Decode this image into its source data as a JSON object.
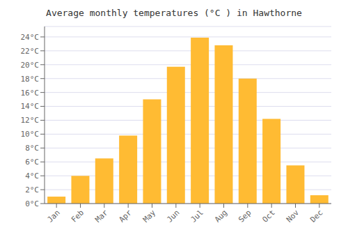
{
  "chart_data": {
    "type": "bar",
    "title": "Average monthly temperatures (°C ) in Hawthorne",
    "categories": [
      "Jan",
      "Feb",
      "Mar",
      "Apr",
      "May",
      "Jun",
      "Jul",
      "Aug",
      "Sep",
      "Oct",
      "Nov",
      "Dec"
    ],
    "values": [
      1,
      4,
      6.5,
      9.8,
      15,
      19.7,
      23.9,
      22.8,
      18,
      12.2,
      5.5,
      1.2
    ],
    "color": "#FFBB33",
    "ylim": [
      0,
      25.5
    ],
    "yticks": [
      {
        "value": 0,
        "label": "0°C"
      },
      {
        "value": 2,
        "label": "2°C"
      },
      {
        "value": 4,
        "label": "4°C"
      },
      {
        "value": 6,
        "label": "6°C"
      },
      {
        "value": 8,
        "label": "8°C"
      },
      {
        "value": 10,
        "label": "10°C"
      },
      {
        "value": 12,
        "label": "12°C"
      },
      {
        "value": 14,
        "label": "14°C"
      },
      {
        "value": 16,
        "label": "16°C"
      },
      {
        "value": 18,
        "label": "18°C"
      },
      {
        "value": 20,
        "label": "20°C"
      },
      {
        "value": 22,
        "label": "22°C"
      },
      {
        "value": 24,
        "label": "24°C"
      }
    ],
    "grid": true
  }
}
